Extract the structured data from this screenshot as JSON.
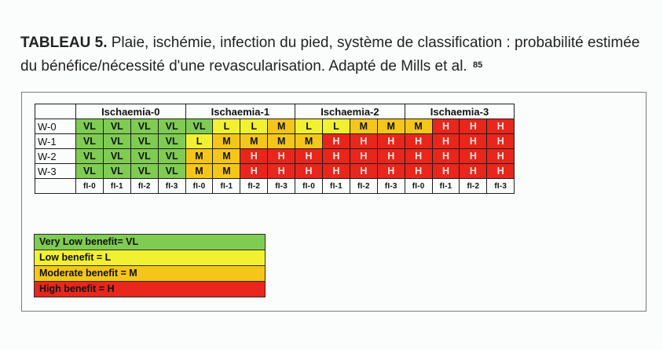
{
  "caption": {
    "label": "TABLEAU 5.",
    "line1": " Plaie, ischémie, infection du pied, système de classification : probabilité estimée",
    "line2": "du bénéfice/nécessité d'une revascularisation. Adapté de Mills et al.",
    "ref": "85"
  },
  "table": {
    "groups": [
      "Ischaemia-0",
      "Ischaemia-1",
      "Ischaemia-2",
      "Ischaemia-3"
    ],
    "rows": [
      {
        "label": "W-0",
        "cells": [
          "VL",
          "VL",
          "VL",
          "VL",
          "VL",
          "L",
          "L",
          "M",
          "L",
          "L",
          "M",
          "M",
          "M",
          "H",
          "H",
          "H"
        ]
      },
      {
        "label": "W-1",
        "cells": [
          "VL",
          "VL",
          "VL",
          "VL",
          "L",
          "M",
          "M",
          "M",
          "M",
          "H",
          "H",
          "H",
          "H",
          "H",
          "H",
          "H"
        ]
      },
      {
        "label": "W-2",
        "cells": [
          "VL",
          "VL",
          "VL",
          "VL",
          "M",
          "M",
          "H",
          "H",
          "H",
          "H",
          "H",
          "H",
          "H",
          "H",
          "H",
          "H"
        ]
      },
      {
        "label": "W-3",
        "cells": [
          "VL",
          "VL",
          "VL",
          "VL",
          "M",
          "M",
          "H",
          "H",
          "H",
          "H",
          "H",
          "H",
          "H",
          "H",
          "H",
          "H"
        ]
      }
    ],
    "footer": [
      "fI-0",
      "fI-1",
      "fI-2",
      "fI-3",
      "fI-0",
      "fI-1",
      "fI-2",
      "fI-3",
      "fI-0",
      "fI-1",
      "fI-2",
      "fI-3",
      "fI-0",
      "fI-1",
      "fI-2",
      "fI-3"
    ]
  },
  "legend": [
    {
      "code": "VL",
      "label": "Very Low benefit= VL",
      "color": "#7fcc52"
    },
    {
      "code": "L",
      "label": "Low benefit = L",
      "color": "#f1f132"
    },
    {
      "code": "M",
      "label": "Moderate benefit = M",
      "color": "#f4c619"
    },
    {
      "code": "H",
      "label": "High benefit = H",
      "color": "#e8261c"
    }
  ]
}
